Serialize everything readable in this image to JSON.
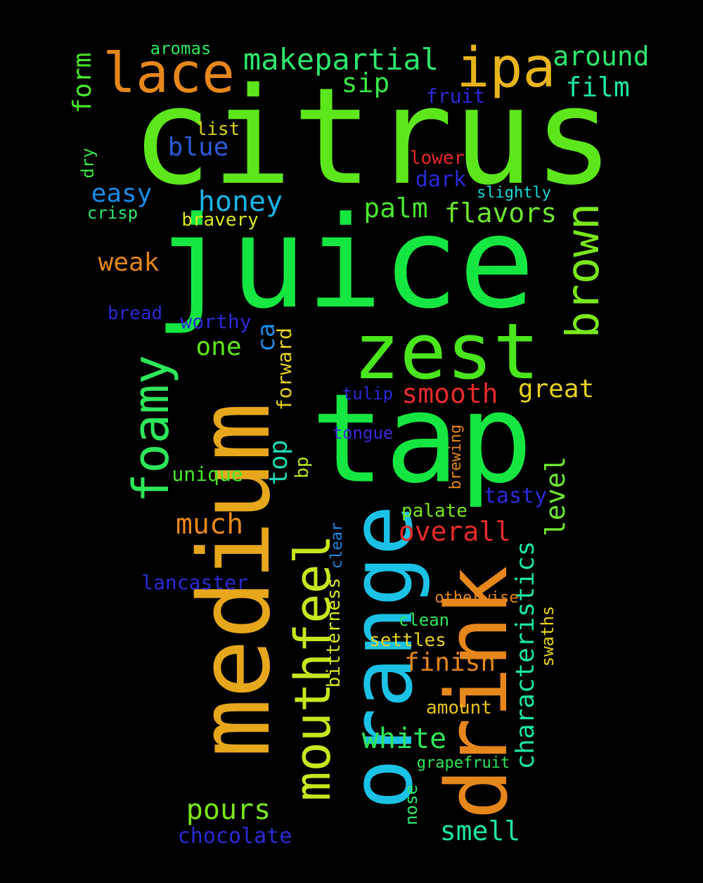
{
  "background": "#000000",
  "words": [
    {
      "text": "citrus",
      "color": "#5ee61c"
    },
    {
      "text": "juice",
      "color": "#16e642"
    },
    {
      "text": "tap",
      "color": "#16e642"
    },
    {
      "text": "zest",
      "color": "#4ae61c"
    },
    {
      "text": "medium",
      "color": "#e6a71c"
    },
    {
      "text": "orange",
      "color": "#1cc2e6"
    },
    {
      "text": "drink",
      "color": "#e6871c"
    },
    {
      "text": "mouthfeel",
      "color": "#c8e61c"
    },
    {
      "text": "foamy",
      "color": "#2ee65a"
    },
    {
      "text": "lace",
      "color": "#e6871c"
    },
    {
      "text": "ipa",
      "color": "#e6b41c"
    },
    {
      "text": "brown",
      "color": "#7ae61c"
    },
    {
      "text": "makepartial",
      "color": "#2ee66e"
    },
    {
      "text": "around",
      "color": "#2ee66e"
    },
    {
      "text": "film",
      "color": "#1ce6a8"
    },
    {
      "text": "sip",
      "color": "#3ae646"
    },
    {
      "text": "fruit",
      "color": "#2a2ad6"
    },
    {
      "text": "aromas",
      "color": "#2ee65a"
    },
    {
      "text": "form",
      "color": "#4ae62e"
    },
    {
      "text": "list",
      "color": "#d8d21c"
    },
    {
      "text": "blue",
      "color": "#2a5ad6"
    },
    {
      "text": "lower",
      "color": "#e62a2a"
    },
    {
      "text": "dry",
      "color": "#3ae646"
    },
    {
      "text": "dark",
      "color": "#2a2ad6"
    },
    {
      "text": "easy",
      "color": "#1c8ae6"
    },
    {
      "text": "honey",
      "color": "#1cb4e6"
    },
    {
      "text": "slightly",
      "color": "#1cd8d8"
    },
    {
      "text": "palm",
      "color": "#4ae62e"
    },
    {
      "text": "flavors",
      "color": "#6ee62e"
    },
    {
      "text": "crisp",
      "color": "#2ee66e"
    },
    {
      "text": "bravery",
      "color": "#d8e61c"
    },
    {
      "text": "weak",
      "color": "#e6871c"
    },
    {
      "text": "bread",
      "color": "#2a2ad6"
    },
    {
      "text": "worthy",
      "color": "#2a2ad6"
    },
    {
      "text": "ca",
      "color": "#1c8ae6"
    },
    {
      "text": "one",
      "color": "#5ee61c"
    },
    {
      "text": "forward",
      "color": "#e6d21c"
    },
    {
      "text": "smooth",
      "color": "#e62a2a"
    },
    {
      "text": "great",
      "color": "#e6d21c"
    },
    {
      "text": "tulip",
      "color": "#2a2ad6"
    },
    {
      "text": "tongue",
      "color": "#3a2ad6"
    },
    {
      "text": "brewing",
      "color": "#e6871c"
    },
    {
      "text": "top",
      "color": "#1cd8b4"
    },
    {
      "text": "bp",
      "color": "#b4e61c"
    },
    {
      "text": "unique",
      "color": "#4ae62e"
    },
    {
      "text": "level",
      "color": "#6ee62e"
    },
    {
      "text": "tasty",
      "color": "#2a2ad6"
    },
    {
      "text": "much",
      "color": "#e6871c"
    },
    {
      "text": "palate",
      "color": "#7ae61c"
    },
    {
      "text": "overall",
      "color": "#e62a2a"
    },
    {
      "text": "clear",
      "color": "#1c8ae6"
    },
    {
      "text": "characteristics",
      "color": "#1ce6a0"
    },
    {
      "text": "lancaster",
      "color": "#2a2ad6"
    },
    {
      "text": "otherwise",
      "color": "#e6871c"
    },
    {
      "text": "bitterness",
      "color": "#d8e61c"
    },
    {
      "text": "clean",
      "color": "#2ee65a"
    },
    {
      "text": "swaths",
      "color": "#e6d21c"
    },
    {
      "text": "settles",
      "color": "#e6d21c"
    },
    {
      "text": "finish",
      "color": "#e6871c"
    },
    {
      "text": "amount",
      "color": "#e6c41c"
    },
    {
      "text": "white",
      "color": "#2ee65a"
    },
    {
      "text": "grapefruit",
      "color": "#2ee65a"
    },
    {
      "text": "pours",
      "color": "#7ae61c"
    },
    {
      "text": "nose",
      "color": "#2ee66e"
    },
    {
      "text": "smell",
      "color": "#1ce6a0"
    },
    {
      "text": "chocolate",
      "color": "#2a2ad6"
    }
  ]
}
